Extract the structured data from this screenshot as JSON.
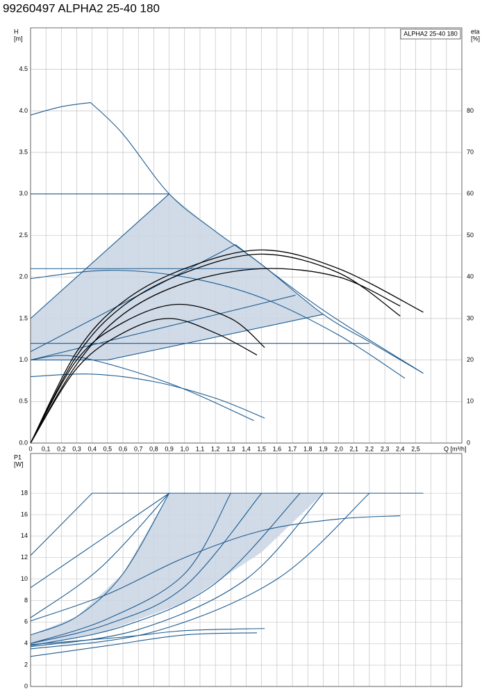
{
  "title": "99260497 ALPHA2 25-40 180",
  "chart_data": [
    {
      "type": "line",
      "y_label": [
        "H",
        "[m]"
      ],
      "y2_label": [
        "eta",
        "[%]"
      ],
      "x_label": "Q [m³/h]",
      "annotation": "ALPHA2 25-40 180",
      "xlim": [
        0,
        2.8
      ],
      "ylim": [
        0,
        5
      ],
      "y2lim": [
        0,
        100
      ],
      "xticks": [
        0,
        {
          "value": 0.1,
          "label": "0,1"
        },
        {
          "value": 0.2,
          "label": "0,2"
        },
        {
          "value": 0.3,
          "label": "0,3"
        },
        {
          "value": 0.4,
          "label": "0,4"
        },
        {
          "value": 0.5,
          "label": "0,5"
        },
        {
          "value": 0.6,
          "label": "0,6"
        },
        {
          "value": 0.7,
          "label": "0,7"
        },
        {
          "value": 0.8,
          "label": "0,8"
        },
        {
          "value": 0.9,
          "label": "0,9"
        },
        {
          "value": 1,
          "label": "1,0"
        },
        {
          "value": 1.1,
          "label": "1,1"
        },
        {
          "value": 1.2,
          "label": "1,2"
        },
        {
          "value": 1.3,
          "label": "1,3"
        },
        {
          "value": 1.4,
          "label": "1,4"
        },
        {
          "value": 1.5,
          "label": "1,5"
        },
        {
          "value": 1.6,
          "label": "1,6"
        },
        {
          "value": 1.7,
          "label": "1,7"
        },
        {
          "value": 1.8,
          "label": "1,8"
        },
        {
          "value": 1.9,
          "label": "1,9"
        },
        {
          "value": 2,
          "label": "2,0"
        },
        {
          "value": 2.1,
          "label": "2,1"
        },
        {
          "value": 2.2,
          "label": "2,2"
        },
        {
          "value": 2.3,
          "label": "2,3"
        },
        {
          "value": 2.4,
          "label": "2,4"
        },
        {
          "value": 2.5,
          "label": "2,5"
        }
      ],
      "xgrid": [
        2.6,
        2.7,
        2.8
      ],
      "yticks": [
        {
          "value": 0,
          "label": "0.0"
        },
        0.5,
        {
          "value": 1,
          "label": "1.0"
        },
        1.5,
        {
          "value": 2,
          "label": "2.0"
        },
        2.5,
        {
          "value": 3,
          "label": "3.0"
        },
        3.5,
        {
          "value": 4,
          "label": "4.0"
        },
        4.5
      ],
      "y2ticks": [
        0,
        10,
        20,
        30,
        40,
        50,
        60,
        70,
        80
      ],
      "grid": true,
      "areas": [
        {
          "color": "#c9d5e4",
          "x": [
            0,
            0,
            0.9,
            1.2,
            1.5,
            1.9,
            0.5
          ],
          "values": [
            1.0,
            1.5,
            3.0,
            2.55,
            2.15,
            1.55,
            1.0
          ]
        }
      ],
      "series": [
        {
          "color": "#1b5a8f",
          "x": [
            0,
            0.2,
            0.39
          ],
          "values": [
            3.95,
            4.05,
            4.1
          ]
        },
        {
          "color": "#1b5a8f",
          "x": [
            0.39,
            0.6,
            0.9,
            1.2,
            1.5,
            1.9,
            2.2,
            2.55
          ],
          "values": [
            4.1,
            3.72,
            3.0,
            2.55,
            2.15,
            1.55,
            1.22,
            0.84
          ]
        },
        {
          "color": "#1b5a8f",
          "x": [
            0,
            0.9
          ],
          "values": [
            3.0,
            3.0
          ]
        },
        {
          "color": "#1b5a8f",
          "x": [
            0,
            0.9
          ],
          "values": [
            1.5,
            3.0
          ]
        },
        {
          "color": "#1b5a8f",
          "x": [
            0,
            1.33
          ],
          "values": [
            1.1,
            2.39
          ]
        },
        {
          "color": "#1b5a8f",
          "x": [
            1.33,
            1.9,
            2.55
          ],
          "values": [
            2.39,
            1.6,
            0.84
          ]
        },
        {
          "color": "#1b5a8f",
          "x": [
            0,
            1.5
          ],
          "values": [
            2.1,
            2.1
          ]
        },
        {
          "color": "#1b5a8f",
          "x": [
            0,
            0.5,
            1.0,
            1.5,
            2.0,
            2.43
          ],
          "values": [
            1.98,
            2.08,
            2.0,
            1.75,
            1.3,
            0.78
          ]
        },
        {
          "color": "#1b5a8f",
          "x": [
            0,
            1.72
          ],
          "values": [
            1.0,
            1.78
          ]
        },
        {
          "color": "#1b5a8f",
          "x": [
            0.5,
            1.9
          ],
          "values": [
            1.0,
            1.55
          ]
        },
        {
          "color": "#1b5a8f",
          "x": [
            0,
            2.2
          ],
          "values": [
            1.2,
            1.2
          ]
        },
        {
          "color": "#1b5a8f",
          "x": [
            0,
            0.5
          ],
          "values": [
            1.0,
            1.0
          ]
        },
        {
          "color": "#1b5a8f",
          "x": [
            0,
            0.3,
            0.9,
            1.45
          ],
          "values": [
            1.0,
            1.04,
            0.72,
            0.27
          ]
        },
        {
          "color": "#1b5a8f",
          "x": [
            0,
            0.4,
            0.8,
            1.2,
            1.52
          ],
          "values": [
            0.8,
            0.83,
            0.74,
            0.54,
            0.3
          ]
        },
        {
          "color": "#000000",
          "axis": "y2",
          "x": [
            0,
            0.3,
            0.6,
            1.0,
            1.5,
            2.0,
            2.55
          ],
          "values": [
            0,
            22,
            34,
            42,
            46.5,
            42,
            31.5
          ]
        },
        {
          "color": "#000000",
          "axis": "y2",
          "x": [
            0,
            0.3,
            0.6,
            1.0,
            1.5,
            2.0,
            2.4
          ],
          "values": [
            0,
            21,
            33,
            41,
            45.5,
            41,
            30.6
          ]
        },
        {
          "color": "#000000",
          "axis": "y2",
          "x": [
            0,
            0.3,
            0.6,
            1.0,
            1.5,
            2.0,
            2.4
          ],
          "values": [
            0,
            19,
            31,
            38.5,
            42,
            40,
            33
          ]
        },
        {
          "color": "#000000",
          "axis": "y2",
          "x": [
            0,
            0.3,
            0.6,
            0.95,
            1.3,
            1.52
          ],
          "values": [
            0,
            20,
            29,
            33.4,
            30,
            23
          ]
        },
        {
          "color": "#000000",
          "axis": "y2",
          "x": [
            0,
            0.3,
            0.6,
            0.9,
            1.2,
            1.47
          ],
          "values": [
            0,
            18,
            26.5,
            30,
            26.5,
            21.2
          ]
        }
      ]
    },
    {
      "type": "line",
      "y_label": [
        "P1",
        "[W]"
      ],
      "xlim": [
        0,
        2.8
      ],
      "ylim": [
        0,
        21.7
      ],
      "xgrid": [
        0,
        0.1,
        0.2,
        0.3,
        0.4,
        0.5,
        0.6,
        0.7,
        0.8,
        0.9,
        1.0,
        1.1,
        1.2,
        1.3,
        1.4,
        1.5,
        1.6,
        1.7,
        1.8,
        1.9,
        2.0,
        2.1,
        2.2,
        2.3,
        2.4,
        2.5,
        2.6,
        2.7,
        2.8
      ],
      "yticks": [
        0,
        2,
        4,
        6,
        8,
        10,
        12,
        14,
        16,
        18
      ],
      "grid": true,
      "areas": [
        {
          "color": "#c9d5e4",
          "x": [
            0,
            0,
            0.3,
            0.6,
            0.9,
            1.9,
            1.5,
            1.0,
            0.5
          ],
          "values": [
            3.7,
            4.8,
            6.5,
            10.5,
            18,
            18,
            12.5,
            7.8,
            5.2
          ]
        }
      ],
      "series": [
        {
          "color": "#1b5a8f",
          "x": [
            0,
            0.4
          ],
          "values": [
            12.2,
            18
          ]
        },
        {
          "color": "#1b5a8f",
          "x": [
            0.4,
            2.55
          ],
          "values": [
            18,
            18
          ]
        },
        {
          "color": "#1b5a8f",
          "x": [
            0,
            0.9
          ],
          "values": [
            9.2,
            18
          ]
        },
        {
          "color": "#1b5a8f",
          "x": [
            0,
            0.45,
            0.9
          ],
          "values": [
            6.4,
            11,
            18
          ]
        },
        {
          "color": "#1b5a8f",
          "x": [
            0,
            0.3,
            0.6,
            0.9
          ],
          "values": [
            4.8,
            6.5,
            10.5,
            18
          ]
        },
        {
          "color": "#1b5a8f",
          "x": [
            0,
            0.5,
            1.0,
            1.3
          ],
          "values": [
            4.0,
            6.3,
            10.5,
            18
          ]
        },
        {
          "color": "#1b5a8f",
          "x": [
            0,
            0.5,
            1.0,
            1.5
          ],
          "values": [
            4.0,
            5.8,
            9.3,
            18
          ]
        },
        {
          "color": "#1b5a8f",
          "x": [
            0,
            0.6,
            1.2,
            1.75
          ],
          "values": [
            3.8,
            5.6,
            9.6,
            18
          ]
        },
        {
          "color": "#1b5a8f",
          "x": [
            0,
            0.7,
            1.4,
            1.9
          ],
          "values": [
            3.7,
            5.3,
            10,
            18
          ]
        },
        {
          "color": "#1b5a8f",
          "x": [
            0,
            0.8,
            1.6,
            2.2
          ],
          "values": [
            3.5,
            5.1,
            10,
            18
          ]
        },
        {
          "color": "#1b5a8f",
          "x": [
            0,
            0.5,
            1.0,
            1.5,
            2.0,
            2.4
          ],
          "values": [
            6.1,
            8.6,
            12,
            14.5,
            15.6,
            15.9
          ]
        },
        {
          "color": "#1b5a8f",
          "x": [
            0,
            0.5,
            1.0,
            1.47
          ],
          "values": [
            2.8,
            3.8,
            4.8,
            5.0
          ]
        },
        {
          "color": "#1b5a8f",
          "x": [
            0,
            0.6,
            1.0,
            1.52
          ],
          "values": [
            3.9,
            4.6,
            5.2,
            5.4
          ]
        }
      ]
    }
  ]
}
